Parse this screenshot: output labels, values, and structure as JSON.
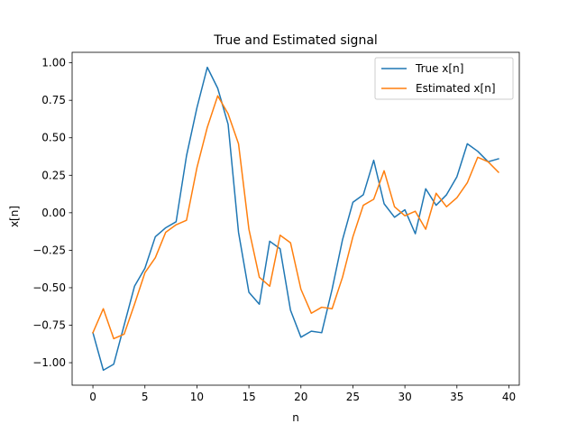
{
  "chart_data": {
    "type": "line",
    "title": "True and Estimated signal",
    "xlabel": "n",
    "ylabel": "x[n]",
    "xlim": [
      -2,
      41
    ],
    "ylim": [
      -1.15,
      1.07
    ],
    "xticks": [
      0,
      5,
      10,
      15,
      20,
      25,
      30,
      35,
      40
    ],
    "yticks": [
      -1.0,
      -0.75,
      -0.5,
      -0.25,
      0.0,
      0.25,
      0.5,
      0.75,
      1.0
    ],
    "ytick_labels": [
      "−1.00",
      "−0.75",
      "−0.50",
      "−0.25",
      "0.00",
      "0.25",
      "0.50",
      "0.75",
      "1.00"
    ],
    "legend": {
      "position": "upper right"
    },
    "grid": false,
    "x": [
      0,
      1,
      2,
      3,
      4,
      5,
      6,
      7,
      8,
      9,
      10,
      11,
      12,
      13,
      14,
      15,
      16,
      17,
      18,
      19,
      20,
      21,
      22,
      23,
      24,
      25,
      26,
      27,
      28,
      29,
      30,
      31,
      32,
      33,
      34,
      35,
      36,
      37,
      38,
      39
    ],
    "series": [
      {
        "name": "True x[n]",
        "color": "#1f77b4",
        "values": [
          -0.8,
          -1.05,
          -1.01,
          -0.75,
          -0.49,
          -0.37,
          -0.16,
          -0.1,
          -0.06,
          0.38,
          0.7,
          0.97,
          0.83,
          0.59,
          -0.13,
          -0.53,
          -0.61,
          -0.19,
          -0.24,
          -0.65,
          -0.83,
          -0.79,
          -0.8,
          -0.51,
          -0.18,
          0.07,
          0.12,
          0.35,
          0.06,
          -0.03,
          0.02,
          -0.14,
          0.16,
          0.05,
          0.12,
          0.24,
          0.46,
          0.41,
          0.34,
          0.36
        ]
      },
      {
        "name": "Estimated x[n]",
        "color": "#ff7f0e",
        "values": [
          -0.8,
          -0.64,
          -0.84,
          -0.81,
          -0.61,
          -0.4,
          -0.3,
          -0.13,
          -0.08,
          -0.05,
          0.3,
          0.57,
          0.78,
          0.66,
          0.46,
          -0.11,
          -0.43,
          -0.49,
          -0.15,
          -0.2,
          -0.51,
          -0.67,
          -0.63,
          -0.64,
          -0.43,
          -0.16,
          0.05,
          0.09,
          0.28,
          0.04,
          -0.02,
          0.01,
          -0.11,
          0.13,
          0.04,
          0.1,
          0.2,
          0.37,
          0.34,
          0.27
        ]
      }
    ]
  }
}
